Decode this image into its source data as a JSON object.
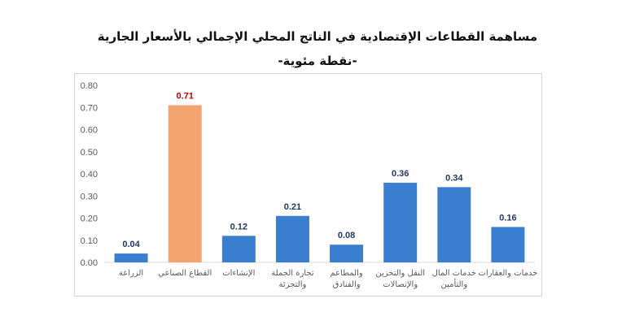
{
  "chart_data": {
    "type": "bar",
    "title": "مساهمة القطاعات الإقتصادية في الناتج المحلي الإجمالي بالأسعار الجارية",
    "subtitle": "-نقطة مئوية-",
    "xlabel": "",
    "ylabel": "",
    "ylim": [
      0,
      0.8
    ],
    "yticks": [
      "0.00",
      "0.10",
      "0.20",
      "0.30",
      "0.40",
      "0.50",
      "0.60",
      "0.70",
      "0.80"
    ],
    "grid": false,
    "categories": [
      [
        "الزراعة"
      ],
      [
        "القطاع الصناعي"
      ],
      [
        "الإنشاءات"
      ],
      [
        "تجارة الجملة",
        "والتجزئة"
      ],
      [
        "والمطاعم",
        "والفنادق"
      ],
      [
        "النقل والتخزين",
        "والإتصالات"
      ],
      [
        "خدمات المال",
        "والتأمين"
      ],
      [
        "خدمات والعقارات"
      ]
    ],
    "values": [
      0.04,
      0.71,
      0.12,
      0.21,
      0.08,
      0.36,
      0.34,
      0.16
    ],
    "data_labels": [
      "0.04",
      "0.71",
      "0.12",
      "0.21",
      "0.08",
      "0.36",
      "0.34",
      "0.16"
    ],
    "highlight_index": 1,
    "colors": {
      "bar": "#3a7fcf",
      "highlight": "#f4a46f",
      "label": "#1f3864",
      "highlight_label": "#c00000",
      "axis": "#d9d9d9"
    }
  }
}
